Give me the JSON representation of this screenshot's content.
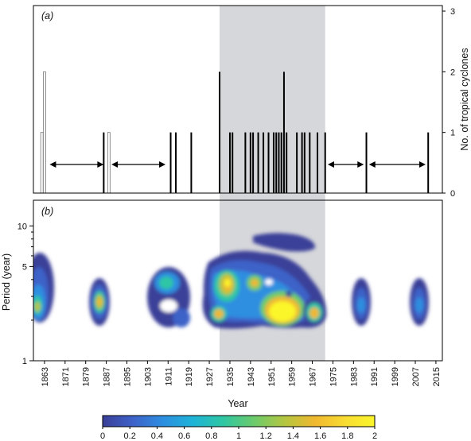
{
  "chart_data": [
    {
      "type": "bar",
      "panel_label": "(a)",
      "ylabel_right": "No. of tropical cyclones",
      "y_ticks": [
        "0",
        "1",
        "2",
        "3"
      ],
      "ylim": [
        0,
        3
      ],
      "shaded_period": [
        1931,
        1972
      ],
      "events_open": [
        {
          "year": 1862,
          "count": 1
        },
        {
          "year": 1863,
          "count": 2
        },
        {
          "year": 1888,
          "count": 1
        }
      ],
      "events_filled": [
        {
          "year": 1886,
          "count": 1
        },
        {
          "year": 1912,
          "count": 1
        },
        {
          "year": 1914,
          "count": 1
        },
        {
          "year": 1920,
          "count": 1
        },
        {
          "year": 1931,
          "count": 2
        },
        {
          "year": 1935,
          "count": 1
        },
        {
          "year": 1936,
          "count": 1
        },
        {
          "year": 1941,
          "count": 1
        },
        {
          "year": 1943,
          "count": 1
        },
        {
          "year": 1944,
          "count": 1
        },
        {
          "year": 1946,
          "count": 1
        },
        {
          "year": 1948,
          "count": 1
        },
        {
          "year": 1950,
          "count": 1
        },
        {
          "year": 1952,
          "count": 1
        },
        {
          "year": 1953,
          "count": 1
        },
        {
          "year": 1954,
          "count": 1
        },
        {
          "year": 1955,
          "count": 1
        },
        {
          "year": 1956,
          "count": 2
        },
        {
          "year": 1957,
          "count": 1
        },
        {
          "year": 1961,
          "count": 1
        },
        {
          "year": 1963,
          "count": 1
        },
        {
          "year": 1964,
          "count": 1
        },
        {
          "year": 1966,
          "count": 1
        },
        {
          "year": 1969,
          "count": 1
        },
        {
          "year": 1972,
          "count": 1
        },
        {
          "year": 1988,
          "count": 1
        },
        {
          "year": 2012,
          "count": 1
        }
      ],
      "interval_arrows": [
        [
          1865,
          1886
        ],
        [
          1889,
          1910
        ],
        [
          1973,
          1987
        ],
        [
          1989,
          2011
        ]
      ]
    },
    {
      "type": "heatmap",
      "panel_label": "(b)",
      "xlabel": "Year",
      "ylabel": "Period (year)",
      "y_scale": "log",
      "y_ticks": [
        "1",
        "5",
        "10"
      ],
      "x_ticks": [
        "1863",
        "1871",
        "1879",
        "1887",
        "1895",
        "1903",
        "1911",
        "1919",
        "1927",
        "1935",
        "1943",
        "1951",
        "1959",
        "1967",
        "1975",
        "1983",
        "1991",
        "1999",
        "2007",
        "2015"
      ],
      "colorbar": {
        "min": 0,
        "max": 2,
        "ticks": [
          "0",
          "0.2",
          "0.4",
          "0.6",
          "0.8",
          "1",
          "1.2",
          "1.4",
          "1.6",
          "1.8",
          "2"
        ],
        "colors": [
          "#3a3f98",
          "#3e62c8",
          "#2d8ee0",
          "#1fb3d8",
          "#2ec6a4",
          "#6ecb6a",
          "#b5c640",
          "#f0b830",
          "#f8dc32",
          "#fbf62c"
        ]
      }
    }
  ]
}
